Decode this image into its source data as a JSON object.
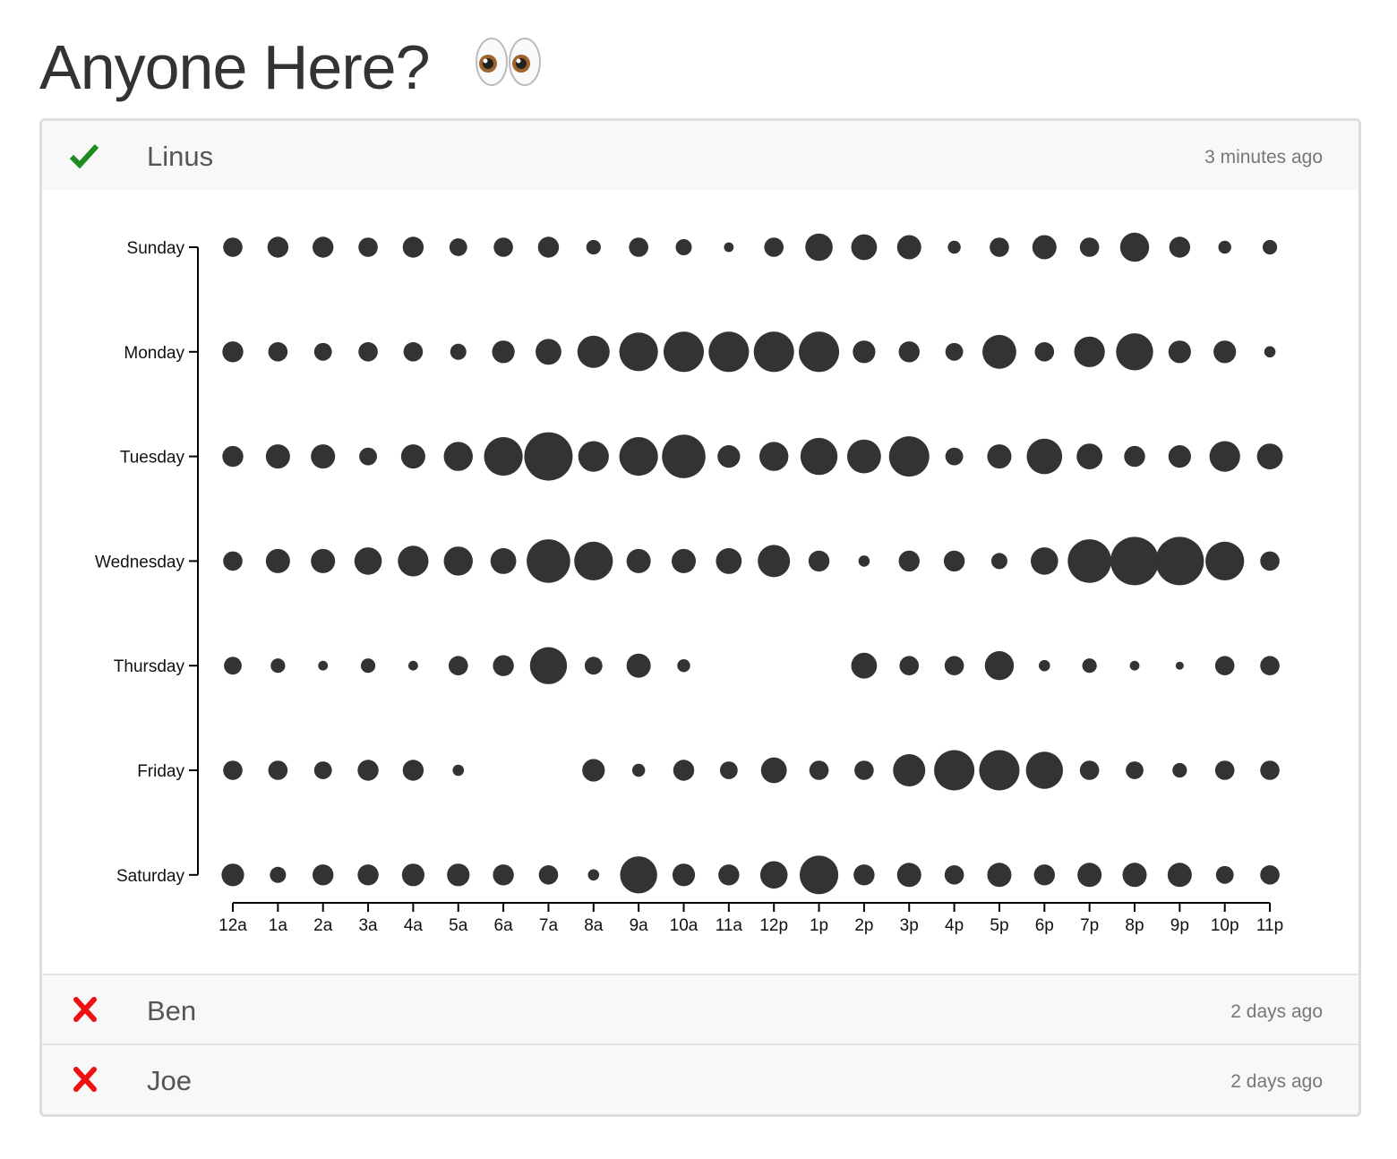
{
  "page": {
    "title": "Anyone Here?",
    "title_emoji": "eyes-emoji"
  },
  "people": [
    {
      "name": "Linus",
      "status": "online",
      "status_icon": "checkmark-icon",
      "status_color": "#1e8c1e",
      "last_seen": "3 minutes ago",
      "expanded": true
    },
    {
      "name": "Ben",
      "status": "offline",
      "status_icon": "cross-icon",
      "status_color": "#ee1111",
      "last_seen": "2 days ago",
      "expanded": false
    },
    {
      "name": "Joe",
      "status": "offline",
      "status_icon": "cross-icon",
      "status_color": "#ee1111",
      "last_seen": "2 days ago",
      "expanded": false
    }
  ],
  "chart_data": {
    "type": "scatter",
    "encoding": "punchcard",
    "x": [
      "12a",
      "1a",
      "2a",
      "3a",
      "4a",
      "5a",
      "6a",
      "7a",
      "8a",
      "9a",
      "10a",
      "11a",
      "12p",
      "1p",
      "2p",
      "3p",
      "4p",
      "5p",
      "6p",
      "7p",
      "8p",
      "9p",
      "10p",
      "11p"
    ],
    "y": [
      "Sunday",
      "Monday",
      "Tuesday",
      "Wednesday",
      "Thursday",
      "Friday",
      "Saturday"
    ],
    "mark_color": "#333333",
    "values": [
      [
        12,
        13,
        13,
        12,
        13,
        11,
        12,
        13,
        9,
        12,
        10,
        6,
        12,
        17,
        16,
        15,
        8,
        12,
        15,
        12,
        18,
        13,
        8,
        9
      ],
      [
        13,
        12,
        11,
        12,
        12,
        10,
        14,
        16,
        20,
        24,
        25,
        25,
        25,
        25,
        14,
        13,
        11,
        21,
        12,
        19,
        23,
        14,
        14,
        7
      ],
      [
        13,
        15,
        15,
        11,
        15,
        18,
        24,
        30,
        19,
        24,
        27,
        14,
        18,
        23,
        21,
        25,
        11,
        15,
        22,
        16,
        13,
        14,
        19,
        16
      ],
      [
        12,
        15,
        15,
        17,
        19,
        18,
        16,
        27,
        24,
        15,
        15,
        16,
        20,
        13,
        7,
        13,
        13,
        10,
        17,
        27,
        30,
        30,
        24,
        12
      ],
      [
        11,
        9,
        6,
        9,
        6,
        12,
        13,
        23,
        11,
        15,
        8,
        0,
        0,
        0,
        16,
        12,
        12,
        18,
        7,
        9,
        6,
        5,
        12,
        12
      ],
      [
        12,
        12,
        11,
        13,
        13,
        7,
        0,
        0,
        14,
        8,
        13,
        11,
        16,
        12,
        12,
        20,
        25,
        25,
        23,
        12,
        11,
        9,
        12,
        12
      ],
      [
        14,
        10,
        13,
        13,
        14,
        14,
        13,
        12,
        7,
        23,
        14,
        13,
        17,
        24,
        13,
        15,
        12,
        15,
        13,
        15,
        15,
        15,
        11,
        12
      ]
    ]
  }
}
